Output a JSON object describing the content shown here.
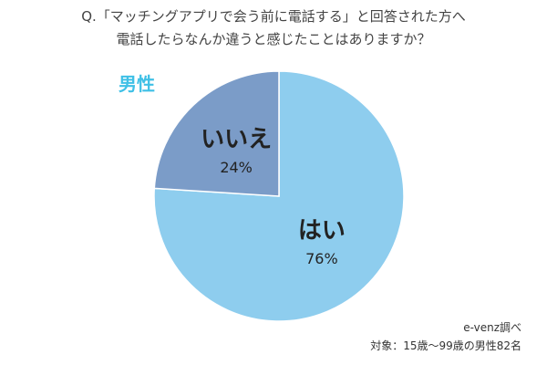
{
  "question": {
    "line1": "Q.「マッチングアプリで会う前に電話する」と回答された方へ",
    "line2": "電話したらなんか違うと感じたことはありますか？"
  },
  "group_label": "男性",
  "colors": {
    "group_label": "#3fc0e6",
    "yes_slice": "#8ecdee",
    "no_slice": "#7b9cc8"
  },
  "chart_data": {
    "type": "pie",
    "title": "男性",
    "slices": [
      {
        "label": "はい",
        "value": 76,
        "display": "76%"
      },
      {
        "label": "いいえ",
        "value": 24,
        "display": "24%"
      }
    ]
  },
  "footer": {
    "source": "e-venz調べ",
    "target": "対象：15歳〜99歳の男性82名"
  }
}
